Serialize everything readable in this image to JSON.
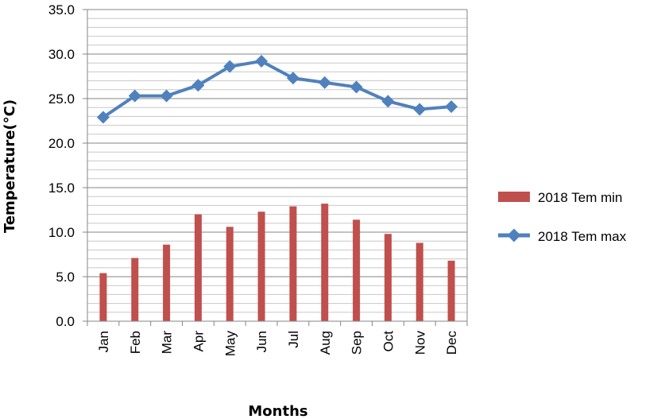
{
  "chart_data": {
    "type": "bar+line",
    "title": "",
    "xlabel": "Months",
    "ylabel": "Temperature(°C)",
    "ylim": [
      0,
      35
    ],
    "ytick_step": 5,
    "ytick_labels": [
      "0.0",
      "5.0",
      "10.0",
      "15.0",
      "20.0",
      "25.0",
      "30.0",
      "35.0"
    ],
    "grid": "horizontal",
    "legend_position": "right",
    "categories": [
      "Jan",
      "Feb",
      "Mar",
      "Apr",
      "May",
      "Jun",
      "Jul",
      "Aug",
      "Sep",
      "Oct",
      "Nov",
      "Dec"
    ],
    "series": [
      {
        "name": "2018 Tem min",
        "kind": "bar",
        "color": "#C0504D",
        "values": [
          5.4,
          7.1,
          8.6,
          12.0,
          10.6,
          12.3,
          12.9,
          13.2,
          11.4,
          9.8,
          8.8,
          6.8
        ]
      },
      {
        "name": "2018 Tem max",
        "kind": "line",
        "marker": "diamond",
        "color": "#4F81BD",
        "values": [
          22.9,
          25.3,
          25.3,
          26.5,
          28.6,
          29.2,
          27.3,
          26.8,
          26.3,
          24.7,
          23.8,
          24.1
        ]
      }
    ]
  }
}
